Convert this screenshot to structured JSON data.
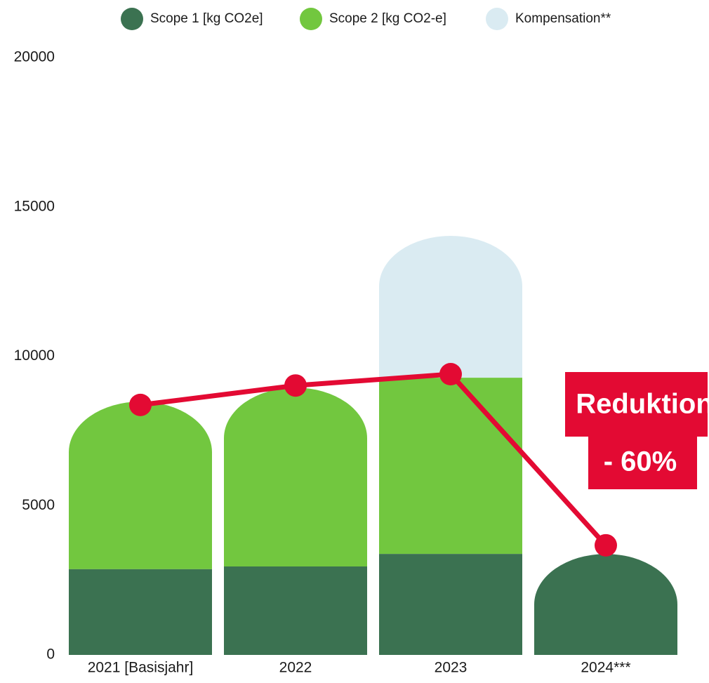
{
  "chart_data": {
    "type": "bar",
    "categories": [
      "2021 [Basisjahr]",
      "2022",
      "2023",
      "2024***"
    ],
    "series": [
      {
        "name": "Scope 1 [kg CO2e]",
        "color": "#3b7251",
        "values": [
          2870,
          2960,
          3380,
          3380
        ]
      },
      {
        "name": "Scope 2 [kg CO2-e]",
        "color": "#72c73f",
        "values": [
          5610,
          5990,
          5900,
          0
        ]
      },
      {
        "name": "Kompensation**",
        "color": "#daebf2",
        "values": [
          0,
          0,
          4750,
          0
        ]
      }
    ],
    "line": {
      "color": "#e30a33",
      "values": [
        8370,
        9020,
        9400,
        3670
      ]
    },
    "annotation": [
      "Reduktion",
      "- 60%"
    ],
    "annotation_color": "#e30a33",
    "stacked": true,
    "ylim": [
      0,
      20000
    ],
    "yticks": [
      0,
      5000,
      10000,
      15000,
      20000
    ],
    "grid": false
  }
}
